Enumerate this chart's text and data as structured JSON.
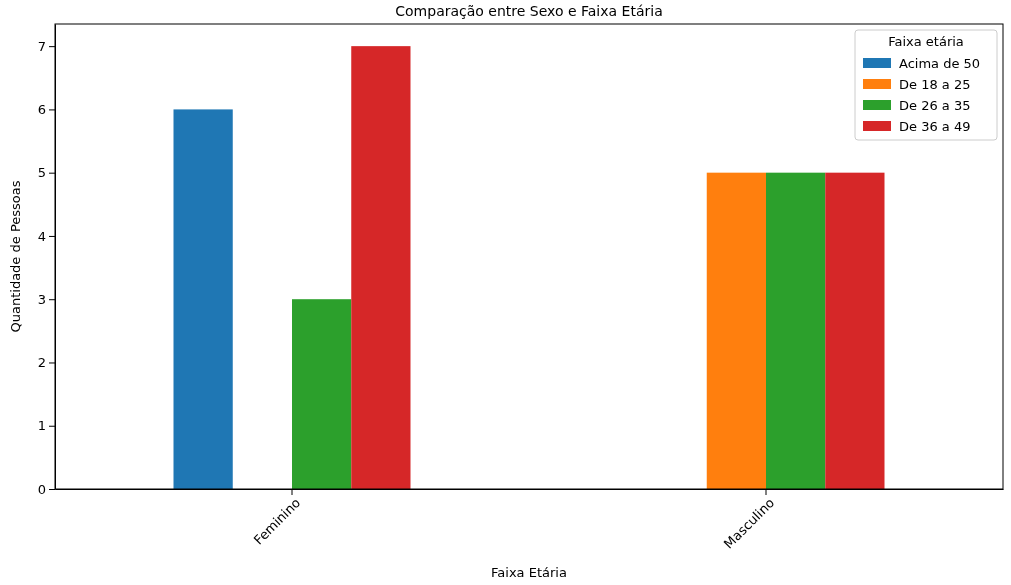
{
  "chart_data": {
    "type": "bar",
    "title": "Comparação entre Sexo e Faixa Etária",
    "xlabel": "Faixa Etária",
    "ylabel": "Quantidade de Pessoas",
    "legend_title": "Faixa etária",
    "legend": "top right",
    "categories": [
      "Feminino",
      "Masculino"
    ],
    "series": [
      {
        "name": "Acima de 50",
        "color": "#1f77b4",
        "values": [
          6,
          null
        ]
      },
      {
        "name": "De 18 a 25",
        "color": "#ff7f0e",
        "values": [
          null,
          5
        ]
      },
      {
        "name": "De 26 a 35",
        "color": "#2ca02c",
        "values": [
          3,
          5
        ]
      },
      {
        "name": "De 36 a 49",
        "color": "#d62728",
        "values": [
          7,
          5
        ]
      }
    ],
    "ylim": [
      0,
      7.35
    ],
    "yticks": [
      0,
      1,
      2,
      3,
      4,
      5,
      6,
      7
    ],
    "grid": false
  }
}
